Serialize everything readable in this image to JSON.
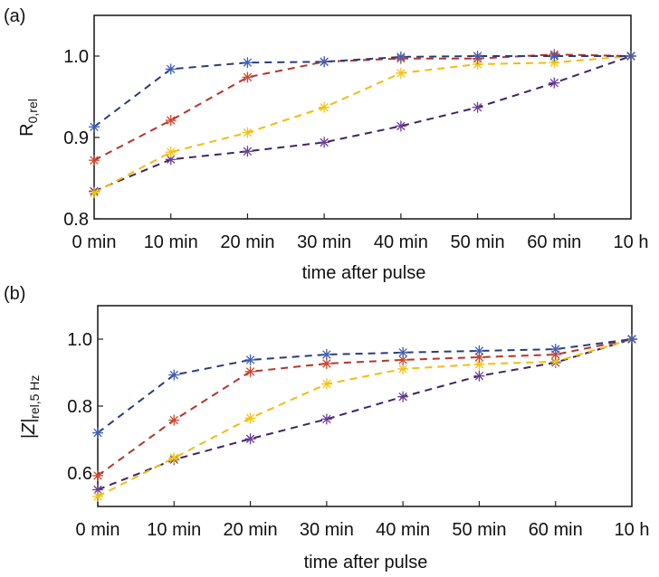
{
  "chart_data": [
    {
      "type": "line",
      "panel_label": "(a)",
      "title": "",
      "xlabel": "time after pulse",
      "ylabel_main": "R",
      "ylabel_sub": "0,rel",
      "categories": [
        "0 min",
        "10 min",
        "20 min",
        "30 min",
        "40 min",
        "50 min",
        "60 min",
        "10 h"
      ],
      "ylim": [
        0.8,
        1.05
      ],
      "yticks": [
        0.8,
        0.9,
        1.0
      ],
      "ytick_labels": [
        "0.8",
        "0.9",
        "1.0"
      ],
      "grid": false,
      "line_style": "dashed",
      "marker": "asterisk",
      "series": [
        {
          "name": "series-1",
          "color": "#3d5fb5",
          "line_color": "#2b3b7c",
          "values": [
            0.913,
            0.984,
            0.992,
            0.993,
            0.999,
            1.0,
            1.0,
            1.0
          ]
        },
        {
          "name": "series-2",
          "color": "#d0462e",
          "line_color": "#b5352a",
          "values": [
            0.872,
            0.921,
            0.974,
            0.993,
            0.997,
            0.997,
            1.002,
            1.0
          ]
        },
        {
          "name": "series-3",
          "color": "#f2c416",
          "line_color": "#efbd10",
          "values": [
            0.832,
            0.882,
            0.906,
            0.937,
            0.979,
            0.99,
            0.992,
            1.0
          ]
        },
        {
          "name": "series-4",
          "color": "#6a3d9a",
          "line_color": "#3f2466",
          "values": [
            0.834,
            0.873,
            0.883,
            0.894,
            0.914,
            0.937,
            0.967,
            1.0
          ]
        }
      ]
    },
    {
      "type": "line",
      "panel_label": "(b)",
      "title": "",
      "xlabel": "time after pulse",
      "ylabel_main": "|Z|",
      "ylabel_sub": "rel,5 Hz",
      "categories": [
        "0 min",
        "10 min",
        "20 min",
        "30 min",
        "40 min",
        "50 min",
        "60 min",
        "10 h"
      ],
      "ylim": [
        0.5,
        1.1
      ],
      "yticks": [
        0.6,
        0.8,
        1.0
      ],
      "ytick_labels": [
        "0.6",
        "0.8",
        "1.0"
      ],
      "grid": false,
      "line_style": "dashed",
      "marker": "asterisk",
      "series": [
        {
          "name": "series-1",
          "color": "#3d5fb5",
          "line_color": "#2b3b7c",
          "values": [
            0.72,
            0.893,
            0.938,
            0.954,
            0.96,
            0.965,
            0.97,
            1.0
          ]
        },
        {
          "name": "series-2",
          "color": "#d0462e",
          "line_color": "#b5352a",
          "values": [
            0.592,
            0.758,
            0.903,
            0.927,
            0.938,
            0.946,
            0.954,
            1.0
          ]
        },
        {
          "name": "series-3",
          "color": "#f2c416",
          "line_color": "#efbd10",
          "values": [
            0.53,
            0.645,
            0.764,
            0.866,
            0.911,
            0.925,
            0.933,
            1.0
          ]
        },
        {
          "name": "series-4",
          "color": "#6a3d9a",
          "line_color": "#3f2466",
          "values": [
            0.55,
            0.64,
            0.702,
            0.761,
            0.828,
            0.89,
            0.93,
            1.0
          ]
        }
      ]
    }
  ]
}
